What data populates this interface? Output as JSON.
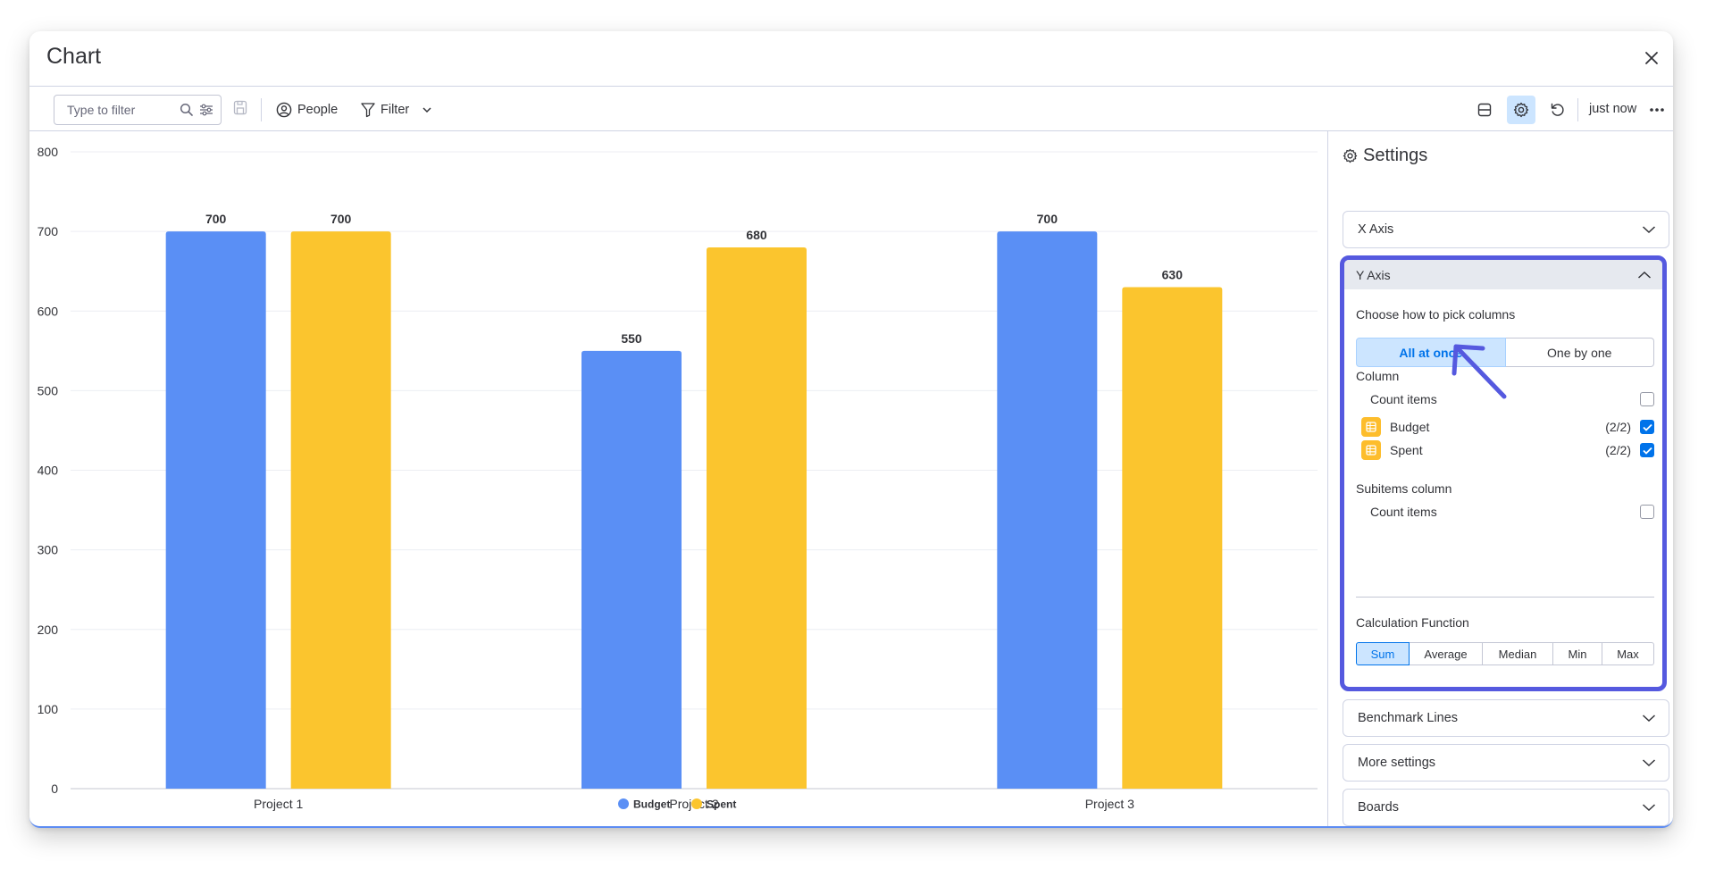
{
  "modal": {
    "title": "Chart"
  },
  "toolbar": {
    "search_placeholder": "Type to filter",
    "people_label": "People",
    "filter_label": "Filter",
    "updated_label": "just now"
  },
  "settings": {
    "title": "Settings",
    "x_axis_label": "X Axis",
    "y_axis": {
      "label": "Y Axis",
      "pick_label": "Choose how to pick columns",
      "pick_options": [
        "All at once",
        "One by one"
      ],
      "pick_selected": "All at once",
      "column_label": "Column",
      "columns": [
        {
          "name": "Count items",
          "count": "",
          "checked": false
        },
        {
          "name": "Budget",
          "count": "(2/2)",
          "checked": true
        },
        {
          "name": "Spent",
          "count": "(2/2)",
          "checked": true
        }
      ],
      "subitems_label": "Subitems column",
      "subitems": [
        {
          "name": "Count items",
          "checked": false
        }
      ],
      "calc_label": "Calculation Function",
      "calc_options": [
        "Sum",
        "Average",
        "Median",
        "Min",
        "Max"
      ],
      "calc_selected": "Sum"
    },
    "benchmark_label": "Benchmark Lines",
    "more_label": "More settings",
    "boards_label": "Boards"
  },
  "colors": {
    "budget": "#5a8ff5",
    "spent": "#fbc52e",
    "accent": "#5559df"
  },
  "chart_data": {
    "type": "bar",
    "categories": [
      "Project 1",
      "Project 2",
      "Project 3"
    ],
    "series": [
      {
        "name": "Budget",
        "values": [
          700,
          550,
          700
        ]
      },
      {
        "name": "Spent",
        "values": [
          700,
          680,
          630
        ]
      }
    ],
    "yticks": [
      "0",
      "100",
      "200",
      "300",
      "400",
      "500",
      "600",
      "700",
      "800"
    ],
    "ylim": [
      0,
      800
    ],
    "grid": true,
    "legend": "bottom-center"
  }
}
